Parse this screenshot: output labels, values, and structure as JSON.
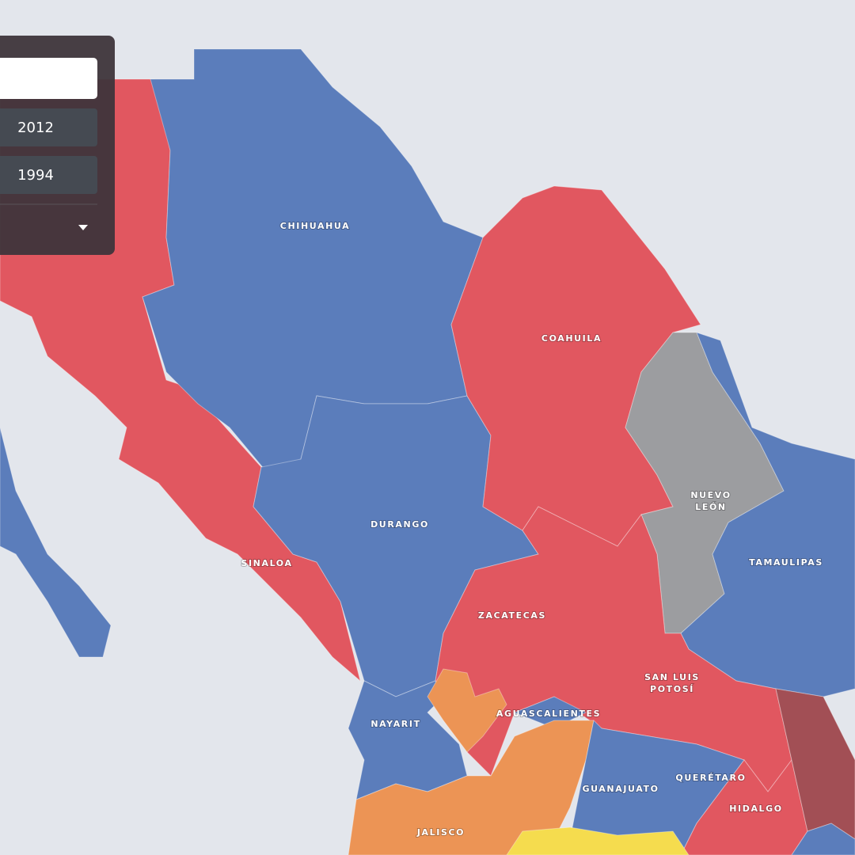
{
  "panel": {
    "years": [
      "2012",
      "1994"
    ]
  },
  "states": [
    {
      "lines": [
        "CHIHUAHUA"
      ]
    },
    {
      "lines": [
        "COAHUILA"
      ]
    },
    {
      "lines": [
        "NUEVO",
        "LEÓN"
      ]
    },
    {
      "lines": [
        "TAMAULIPAS"
      ]
    },
    {
      "lines": [
        "DURANGO"
      ]
    },
    {
      "lines": [
        "SINALOA"
      ]
    },
    {
      "lines": [
        "ZACATECAS"
      ]
    },
    {
      "lines": [
        "SAN LUIS",
        "POTOSÍ"
      ]
    },
    {
      "lines": [
        "NAYARIT"
      ]
    },
    {
      "lines": [
        "AGUASCALIENTES"
      ]
    },
    {
      "lines": [
        "GUANAJUATO"
      ]
    },
    {
      "lines": [
        "QUERÉTARO"
      ]
    },
    {
      "lines": [
        "HIDALGO"
      ]
    },
    {
      "lines": [
        "JALISCO"
      ]
    }
  ]
}
